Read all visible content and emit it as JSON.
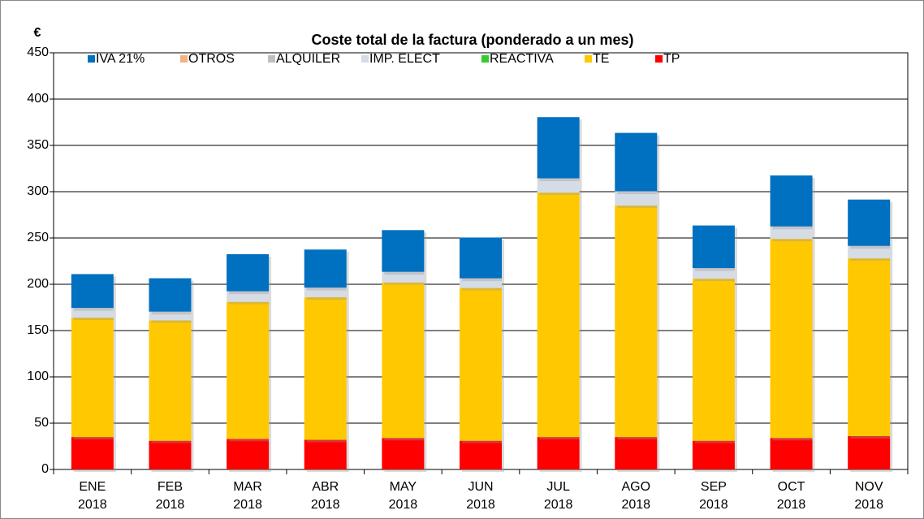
{
  "chart_data": {
    "type": "stacked_bar",
    "title": "Coste total de la factura (ponderado a un mes)",
    "y_label": "€",
    "categories": [
      "ENE 2018",
      "FEB 2018",
      "MAR 2018",
      "ABR 2018",
      "MAY 2018",
      "JUN 2018",
      "JUL 2018",
      "AGO 2018",
      "SEP 2018",
      "OCT 2018",
      "NOV 2018"
    ],
    "series": [
      {
        "name": "IVA 21%",
        "color": "#0070c0",
        "values": [
          36.5,
          36,
          40,
          41,
          45,
          44,
          66,
          63,
          46,
          55,
          50
        ]
      },
      {
        "name": "OTROS",
        "color": "#f4b183",
        "values": [
          0,
          0,
          0,
          0,
          0,
          0,
          0,
          0,
          0,
          0,
          0
        ]
      },
      {
        "name": "ALQUILER",
        "color": "#bfbfbf",
        "values": [
          0.5,
          0.5,
          0.5,
          0.5,
          0.5,
          0.5,
          0.5,
          0.5,
          0.5,
          0.5,
          0.5
        ]
      },
      {
        "name": "IMP. ELECT",
        "color": "#d6dce5",
        "values": [
          10,
          9,
          11,
          10,
          11,
          10,
          15,
          15,
          11,
          13,
          13
        ]
      },
      {
        "name": "REACTIVA",
        "color": "#33cc33",
        "values": [
          0,
          0,
          0,
          0,
          0,
          0,
          0,
          0,
          0,
          0,
          0
        ]
      },
      {
        "name": "TE",
        "color": "#ffc800",
        "values": [
          129,
          130,
          148,
          154,
          168,
          165,
          264,
          250,
          175,
          215,
          192
        ]
      },
      {
        "name": "TP",
        "color": "#ff0000",
        "values": [
          35,
          31,
          33,
          32,
          34,
          31,
          35,
          35,
          31,
          34,
          36
        ]
      }
    ],
    "ylim": [
      0,
      450
    ],
    "yticks": [
      0,
      50,
      100,
      150,
      200,
      250,
      300,
      350,
      400,
      450
    ],
    "grid": true,
    "legend": "top"
  }
}
